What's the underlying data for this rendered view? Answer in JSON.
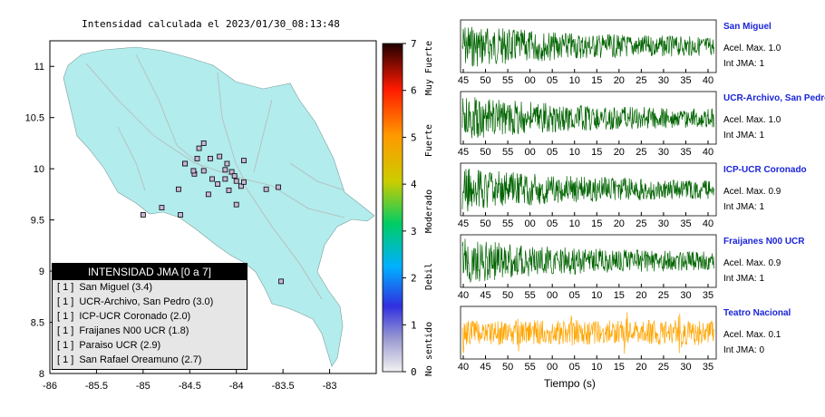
{
  "map_title": "Intensidad calculada el 2023/01/30_08:13:48",
  "map": {
    "xticks": [
      -86,
      -85.5,
      -85,
      -84.5,
      -84,
      -83.5,
      -83
    ],
    "yticks": [
      8,
      8.5,
      9,
      9.5,
      10,
      10.5,
      11
    ],
    "xlim": [
      -86,
      -82.5
    ],
    "ylim": [
      8,
      11.25
    ],
    "land_color": "#b2ecec",
    "stations_lonlat": [
      [
        -84.4,
        10.2
      ],
      [
        -84.28,
        10.1
      ],
      [
        -84.1,
        10.05
      ],
      [
        -84.05,
        9.97
      ],
      [
        -84.02,
        9.93
      ],
      [
        -84.0,
        9.88
      ],
      [
        -83.95,
        9.83
      ],
      [
        -84.12,
        9.9
      ],
      [
        -84.2,
        9.85
      ],
      [
        -84.35,
        9.98
      ],
      [
        -84.45,
        9.95
      ],
      [
        -84.55,
        10.05
      ],
      [
        -84.62,
        9.8
      ],
      [
        -84.3,
        9.75
      ],
      [
        -84.0,
        9.65
      ],
      [
        -83.68,
        9.8
      ],
      [
        -84.12,
        9.99
      ],
      [
        -84.08,
        9.79
      ],
      [
        -84.8,
        9.62
      ],
      [
        -84.55,
        10.05
      ],
      [
        -84.35,
        10.25
      ],
      [
        -84.18,
        10.12
      ],
      [
        -83.92,
        9.87
      ],
      [
        -84.26,
        9.9
      ],
      [
        -83.55,
        9.82
      ],
      [
        -85.0,
        9.55
      ],
      [
        -84.6,
        9.55
      ],
      [
        -83.92,
        10.08
      ],
      [
        -84.46,
        9.98
      ],
      [
        -83.52,
        8.9
      ],
      [
        -84.42,
        10.1
      ]
    ]
  },
  "colorbar": {
    "ticks": [
      "0",
      "1",
      "2",
      "3",
      "4",
      "5",
      "6",
      "7"
    ],
    "labels": [
      "No sentido",
      "Debil",
      "Moderado",
      "Fuerte",
      "Muy Fuerte"
    ]
  },
  "legend": {
    "header": "INTENSIDAD JMA [0 a 7]",
    "rows": [
      {
        "level": "[ 1 ]",
        "name": "San Miguel (3.4)"
      },
      {
        "level": "[ 1 ]",
        "name": "UCR-Archivo, San Pedro (3.0)"
      },
      {
        "level": "[ 1 ]",
        "name": "ICP-UCR Coronado (2.0)"
      },
      {
        "level": "[ 1 ]",
        "name": "Fraijanes N00 UCR (1.8)"
      },
      {
        "level": "[ 1 ]",
        "name": "Paraiso UCR (2.9)"
      },
      {
        "level": "[ 1 ]",
        "name": "San Rafael Oreamuno (2.7)"
      }
    ]
  },
  "chart_data": {
    "type": "line",
    "xlabel": "Tiempo (s)",
    "traces": [
      {
        "name": "San Miguel",
        "accel": "Acel. Max. 1.0",
        "jma": "Int JMA: 1",
        "color": "#006400",
        "ticks": [
          "45",
          "50",
          "55",
          "00",
          "05",
          "10",
          "15",
          "20",
          "25",
          "30",
          "35",
          "40"
        ]
      },
      {
        "name": "UCR-Archivo, San Pedro",
        "accel": "Acel. Max. 1.0",
        "jma": "Int JMA: 1",
        "color": "#006400",
        "ticks": [
          "45",
          "50",
          "55",
          "00",
          "05",
          "10",
          "15",
          "20",
          "25",
          "30",
          "35",
          "40"
        ]
      },
      {
        "name": "ICP-UCR Coronado",
        "accel": "Acel. Max. 0.9",
        "jma": "Int JMA: 1",
        "color": "#006400",
        "ticks": [
          "45",
          "50",
          "55",
          "00",
          "05",
          "10",
          "15",
          "20",
          "25",
          "30",
          "35",
          "40"
        ]
      },
      {
        "name": "Fraijanes N00 UCR",
        "accel": "Acel. Max. 0.9",
        "jma": "Int JMA: 1",
        "color": "#006400",
        "ticks": [
          "40",
          "45",
          "50",
          "55",
          "00",
          "05",
          "10",
          "15",
          "20",
          "25",
          "30",
          "35"
        ]
      },
      {
        "name": "Teatro Nacional",
        "accel": "Acel. Max. 0.1",
        "jma": "Int JMA: 0",
        "color": "#ffa500",
        "ticks": [
          "40",
          "45",
          "50",
          "55",
          "00",
          "05",
          "10",
          "15",
          "20",
          "25",
          "30",
          "35"
        ]
      }
    ]
  }
}
